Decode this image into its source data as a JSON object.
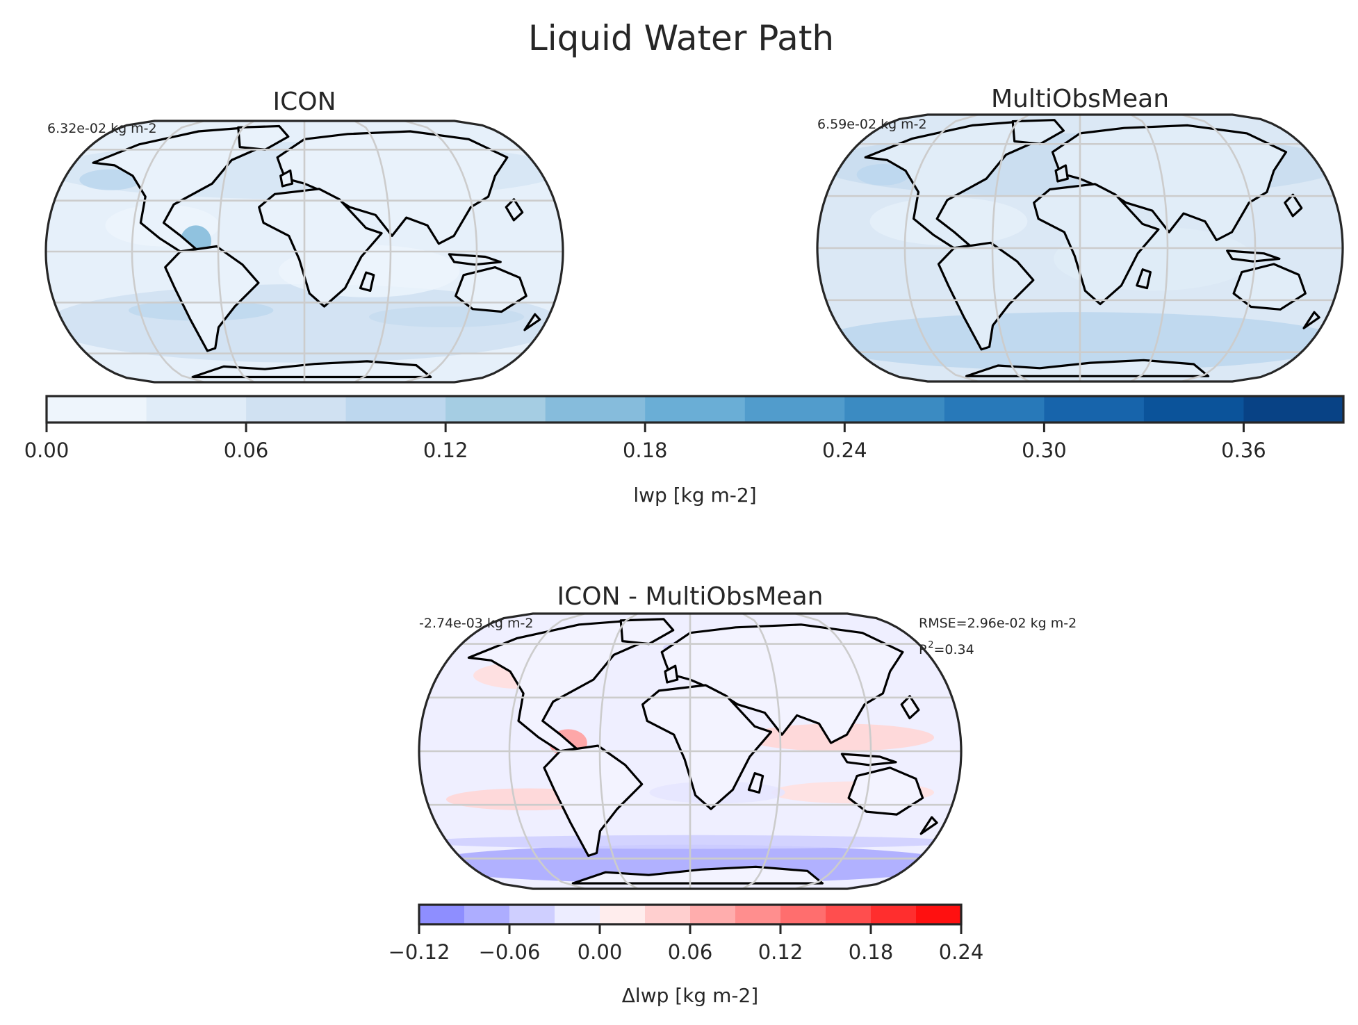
{
  "figure": {
    "title": "Liquid Water Path"
  },
  "chart_data": [
    {
      "type": "heatmap",
      "title": "ICON",
      "annotation": "6.32e-02 kg m-2",
      "field_mean": 0.0632,
      "projection": "Robinson",
      "coastlines": true,
      "grid": true,
      "colormap": "Blues",
      "vmin": 0.0,
      "vmax": 0.39
    },
    {
      "type": "heatmap",
      "title": "MultiObsMean",
      "annotation": "6.59e-02 kg m-2",
      "field_mean": 0.0659,
      "projection": "Robinson",
      "coastlines": true,
      "grid": true,
      "colormap": "Blues",
      "vmin": 0.0,
      "vmax": 0.39
    },
    {
      "type": "heatmap",
      "title": "ICON - MultiObsMean",
      "annotation": "-2.74e-03 kg m-2",
      "field_mean": -0.00274,
      "rmse_label": "RMSE=2.96e-02 kg m-2",
      "r2_prefix": "R",
      "r2_sup": "2",
      "r2_value": "=0.34",
      "rmse": 0.0296,
      "r2": 0.34,
      "projection": "Robinson",
      "coastlines": true,
      "grid": true,
      "colormap": "bwr",
      "vmin": -0.12,
      "vmax": 0.24
    }
  ],
  "colorbars": {
    "lwp": {
      "label": "lwp [kg m-2]",
      "ticks": [
        "0.00",
        "0.06",
        "0.12",
        "0.18",
        "0.24",
        "0.30",
        "0.36"
      ],
      "tick_values": [
        0.0,
        0.06,
        0.12,
        0.18,
        0.24,
        0.3,
        0.36
      ],
      "range": [
        0.0,
        0.39
      ],
      "colors": [
        "#eef5fc",
        "#e0ecf8",
        "#d0e1f2",
        "#bdd7ee",
        "#a5cde3",
        "#86bcdc",
        "#6aaed6",
        "#519ccc",
        "#3b8bc2",
        "#2879b9",
        "#1764ab",
        "#0b539a",
        "#084285"
      ]
    },
    "dlwp": {
      "label": "Δlwp [kg m-2]",
      "ticks": [
        "−0.12",
        "−0.06",
        "0.00",
        "0.06",
        "0.12",
        "0.18",
        "0.24"
      ],
      "tick_values": [
        -0.12,
        -0.06,
        0.0,
        0.06,
        0.12,
        0.18,
        0.24
      ],
      "range": [
        -0.12,
        0.24
      ],
      "colors": [
        "#8e8eff",
        "#adadff",
        "#cfcfff",
        "#ededff",
        "#ffeded",
        "#ffcfcf",
        "#ffadad",
        "#ff8e8e",
        "#ff6e6e",
        "#ff4e4e",
        "#ff2e2e",
        "#ff1010"
      ]
    }
  }
}
